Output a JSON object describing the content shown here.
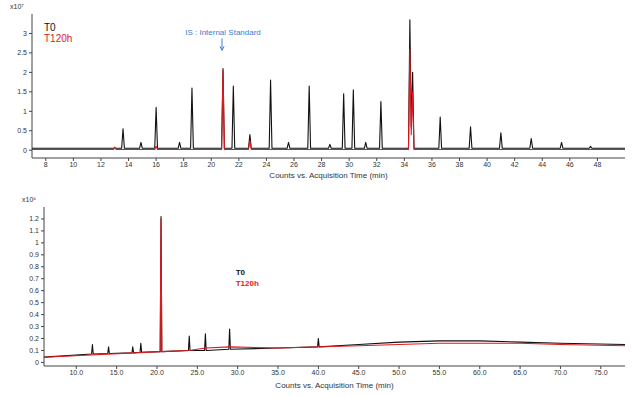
{
  "chart_data": [
    {
      "type": "line",
      "xlabel": "Counts vs. Acquisition Time (min)",
      "ylabel": "x10⁷",
      "xlim": [
        7,
        50
      ],
      "ylim": [
        -0.2,
        3.5
      ],
      "xticks": [
        8,
        10,
        12,
        14,
        16,
        18,
        20,
        22,
        24,
        26,
        28,
        30,
        32,
        34,
        36,
        38,
        40,
        42,
        44,
        46,
        48
      ],
      "yticks": [
        0,
        0.5,
        1,
        1.5,
        2,
        2.5,
        3
      ],
      "grid": false,
      "legend": "upper left",
      "annotations": [
        {
          "text": "IS : Internal Standard",
          "x": 20.85,
          "y": 2.95,
          "color": "#3a7bd5"
        }
      ],
      "series": [
        {
          "name": "T0",
          "color": "#111111",
          "x": [
            7,
            13.5,
            13.6,
            13.7,
            14.8,
            14.9,
            15.0,
            15.9,
            16,
            16.1,
            17.6,
            17.7,
            17.8,
            18.5,
            18.6,
            18.7,
            20.75,
            20.85,
            20.95,
            21.5,
            21.6,
            21.7,
            22.7,
            22.8,
            22.9,
            24.2,
            24.3,
            24.4,
            25.5,
            25.6,
            25.7,
            27.0,
            27.1,
            27.2,
            28.5,
            28.6,
            28.7,
            29.5,
            29.6,
            29.7,
            30.2,
            30.3,
            30.4,
            31.1,
            31.2,
            31.3,
            32.2,
            32.3,
            32.4,
            34.3,
            34.4,
            34.5,
            34.6,
            34.7,
            36.5,
            36.6,
            36.7,
            38.7,
            38.8,
            38.9,
            40.9,
            41,
            41.1,
            43.1,
            43.2,
            43.3,
            45.3,
            45.4,
            45.5,
            47.4,
            47.5,
            47.6,
            50
          ],
          "values": [
            0.05,
            0.05,
            0.55,
            0.05,
            0.05,
            0.2,
            0.05,
            0.05,
            1.1,
            0.05,
            0.05,
            0.2,
            0.05,
            0.05,
            1.6,
            0.05,
            0.05,
            2.1,
            0.05,
            0.05,
            1.65,
            0.05,
            0.05,
            0.4,
            0.05,
            0.05,
            1.8,
            0.05,
            0.05,
            0.2,
            0.05,
            0.05,
            1.65,
            0.05,
            0.05,
            0.15,
            0.05,
            0.05,
            1.45,
            0.05,
            0.05,
            1.55,
            0.05,
            0.05,
            0.2,
            0.05,
            0.05,
            1.25,
            0.05,
            0.05,
            3.35,
            0.6,
            2.0,
            0.05,
            0.05,
            0.85,
            0.05,
            0.05,
            0.6,
            0.05,
            0.05,
            0.45,
            0.05,
            0.05,
            0.3,
            0.05,
            0.05,
            0.2,
            0.05,
            0.05,
            0.1,
            0.05,
            0.05
          ]
        },
        {
          "name": "T120h",
          "color": "#e0191e",
          "x": [
            7,
            12.9,
            13,
            13.1,
            15.9,
            16,
            16.1,
            20.75,
            20.85,
            20.95,
            22.7,
            22.8,
            22.9,
            34.3,
            34.4,
            34.5,
            34.6,
            34.7,
            50
          ],
          "values": [
            0.02,
            0.02,
            0.08,
            0.02,
            0.02,
            0.1,
            0.02,
            0.02,
            2.05,
            0.02,
            0.02,
            0.25,
            0.02,
            0.02,
            2.6,
            0.4,
            1.5,
            0.02,
            0.02
          ]
        }
      ]
    },
    {
      "type": "line",
      "xlabel": "Counts vs. Acquisition Time (min)",
      "ylabel": "x10⁶",
      "xlim": [
        6,
        78
      ],
      "ylim": [
        -0.03,
        1.3
      ],
      "xticks": [
        {
          "value": 10,
          "label": "10.0"
        },
        {
          "value": 15,
          "label": "15.0"
        },
        {
          "value": 20,
          "label": "20.0"
        },
        {
          "value": 25,
          "label": "25.0"
        },
        {
          "value": 30,
          "label": "30.0"
        },
        {
          "value": 35,
          "label": "35.0"
        },
        {
          "value": 40,
          "label": "40.0"
        },
        {
          "value": 45,
          "label": "45.0"
        },
        {
          "value": 50,
          "label": "50.0"
        },
        {
          "value": 55,
          "label": "55.0"
        },
        {
          "value": 60,
          "label": "60.0"
        },
        {
          "value": 65,
          "label": "65.0"
        },
        {
          "value": 70,
          "label": "70.0"
        },
        {
          "value": 75,
          "label": "75.0"
        }
      ],
      "yticks": [
        0,
        0.1,
        0.2,
        0.3,
        0.4,
        0.5,
        0.6,
        0.7,
        0.8,
        0.9,
        1,
        1.1,
        1.2
      ],
      "grid": false,
      "legend": "center",
      "series": [
        {
          "name": "T0",
          "color": "#111111",
          "x": [
            5,
            11.9,
            12,
            12.1,
            13.9,
            14,
            14.1,
            16.9,
            17,
            17.1,
            17.9,
            18,
            18.1,
            20.4,
            20.5,
            20.6,
            23.9,
            24,
            24.1,
            25.9,
            26,
            26.1,
            28.9,
            29,
            29.1,
            35,
            39.9,
            40,
            40.1,
            45,
            50,
            55,
            60,
            65,
            70,
            78
          ],
          "values": [
            0.04,
            0.07,
            0.15,
            0.07,
            0.075,
            0.13,
            0.075,
            0.08,
            0.13,
            0.08,
            0.085,
            0.16,
            0.085,
            0.09,
            1.22,
            0.09,
            0.1,
            0.22,
            0.1,
            0.1,
            0.24,
            0.1,
            0.11,
            0.28,
            0.11,
            0.12,
            0.13,
            0.2,
            0.13,
            0.15,
            0.17,
            0.18,
            0.18,
            0.17,
            0.16,
            0.15
          ]
        },
        {
          "name": "T120h",
          "color": "#e0191e",
          "x": [
            5,
            20.4,
            20.5,
            20.6,
            24,
            26,
            29,
            35,
            45,
            50,
            55,
            60,
            65,
            70,
            78
          ],
          "values": [
            0.04,
            0.09,
            1.2,
            0.09,
            0.1,
            0.12,
            0.13,
            0.12,
            0.14,
            0.15,
            0.16,
            0.16,
            0.16,
            0.15,
            0.14
          ]
        }
      ]
    }
  ]
}
